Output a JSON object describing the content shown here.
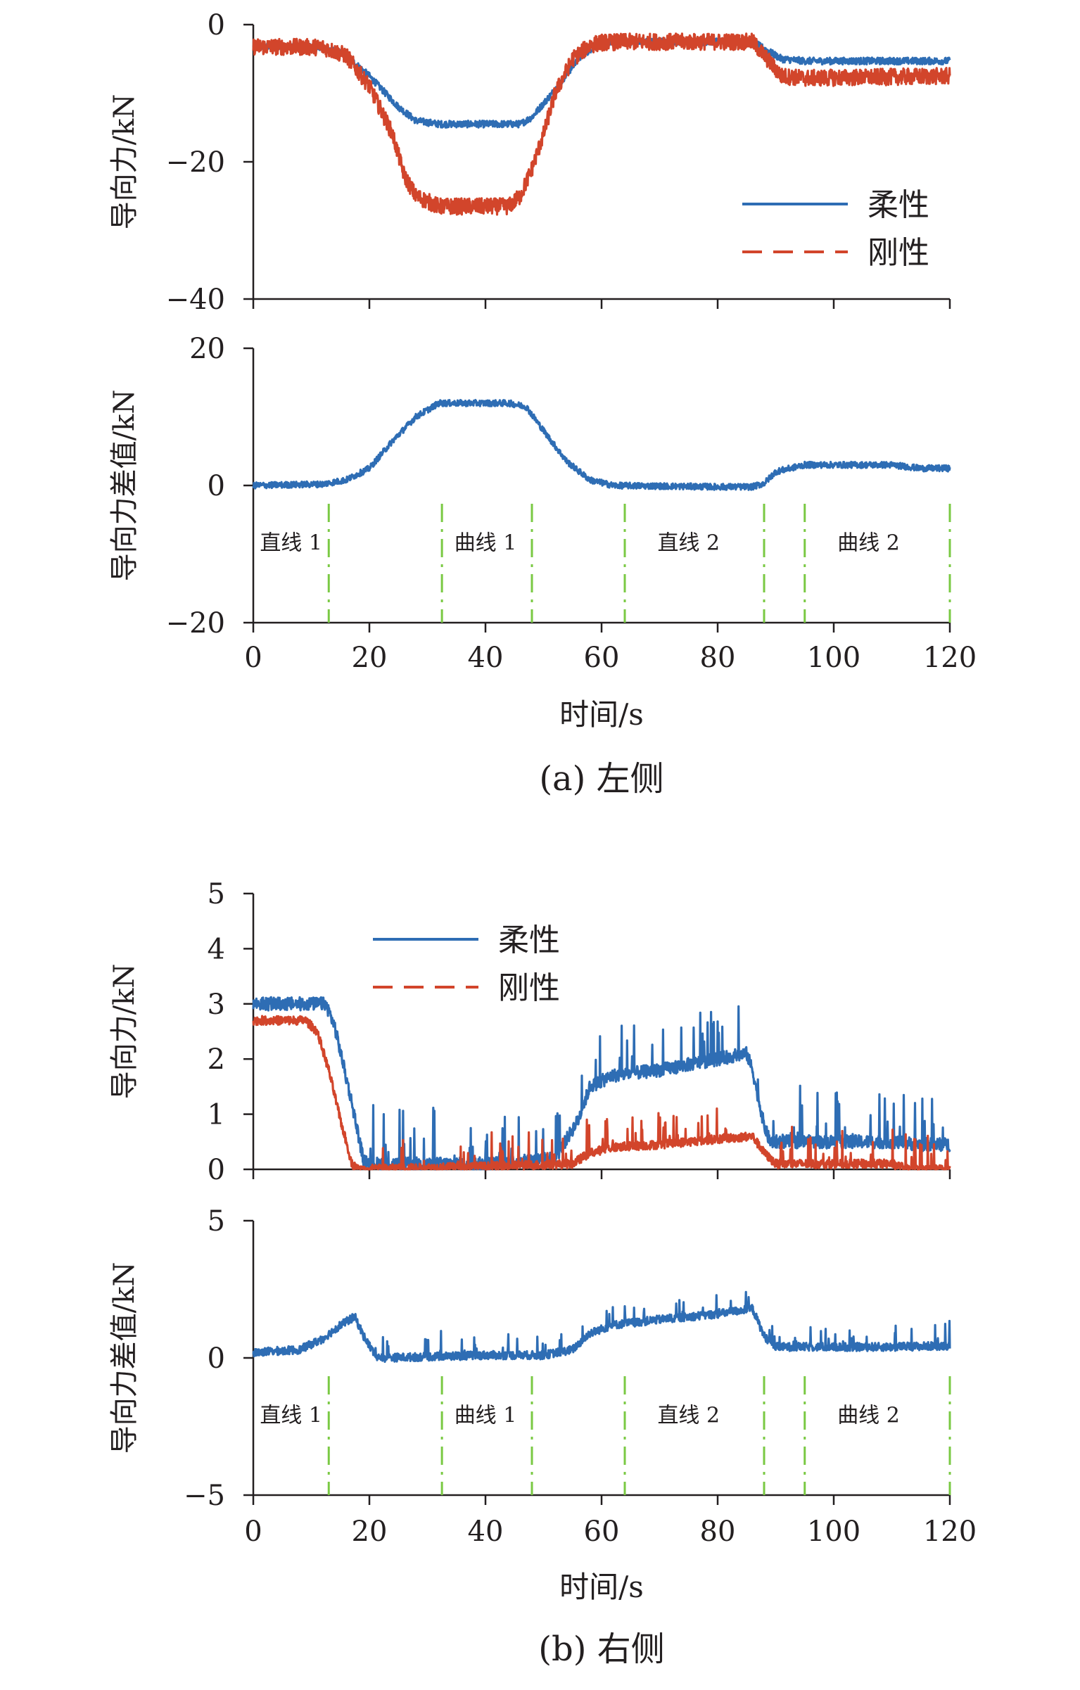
{
  "colors": {
    "flexible": "#2e6db4",
    "rigid": "#d2452b",
    "segment_marker": "#7ac943",
    "axis": "#231f20"
  },
  "chart_data": [
    {
      "type": "line",
      "panel": "a-top",
      "ylabel": "导向力/kN",
      "xlim": [
        0,
        120
      ],
      "ylim": [
        -40,
        0
      ],
      "yticks": [
        "0",
        "−20",
        "−40"
      ],
      "ytick_values": [
        0,
        -20,
        -40
      ],
      "legend": {
        "placement": "center-right",
        "entries": [
          "柔性",
          "刚性"
        ]
      },
      "series": [
        {
          "name": "柔性",
          "style": "solid",
          "noise": 0.5,
          "x": [
            0,
            12,
            16,
            20,
            25,
            28,
            32,
            40,
            46,
            48,
            52,
            56,
            59,
            64,
            80,
            86,
            88,
            91,
            95,
            120
          ],
          "y": [
            -3.2,
            -3.3,
            -4.5,
            -7.5,
            -12,
            -14,
            -14.5,
            -14.5,
            -14.5,
            -13.5,
            -9.5,
            -5,
            -3,
            -2.5,
            -2.5,
            -2.5,
            -3.5,
            -5,
            -5.3,
            -5.3
          ]
        },
        {
          "name": "刚性",
          "style": "dashed",
          "noise": 1.2,
          "x": [
            0,
            12,
            16,
            20,
            24,
            26,
            28,
            32,
            40,
            44,
            46,
            48,
            50,
            52,
            55,
            58,
            60,
            64,
            80,
            86,
            88,
            91,
            95,
            120
          ],
          "y": [
            -3.2,
            -3.3,
            -4.5,
            -9,
            -16,
            -22,
            -25,
            -26.5,
            -26.5,
            -26.5,
            -25,
            -21,
            -16,
            -10,
            -5,
            -3,
            -2.6,
            -2.5,
            -2.5,
            -2.5,
            -4.5,
            -7.5,
            -7.8,
            -7.5
          ]
        }
      ]
    },
    {
      "type": "line",
      "panel": "a-bottom",
      "ylabel": "导向力差值/kN",
      "xlim": [
        0,
        120
      ],
      "ylim": [
        -20,
        20
      ],
      "xticks": [
        "0",
        "20",
        "40",
        "60",
        "80",
        "100",
        "120"
      ],
      "xtick_values": [
        0,
        20,
        40,
        60,
        80,
        100,
        120
      ],
      "yticks": [
        "20",
        "0",
        "−20"
      ],
      "ytick_values": [
        20,
        0,
        -20
      ],
      "xlabel": "时间/s",
      "series": [
        {
          "style": "solid",
          "noise": 0.45,
          "x": [
            0,
            12,
            16,
            20,
            24,
            28,
            32,
            40,
            44,
            47,
            50,
            54,
            58,
            62,
            80,
            86,
            88,
            90,
            95,
            110,
            115,
            120
          ],
          "y": [
            0,
            0.2,
            0.8,
            2.5,
            6.5,
            10,
            12,
            12,
            12,
            11.5,
            8,
            3.5,
            0.8,
            0,
            -0.2,
            -0.2,
            0.3,
            2,
            3,
            3,
            2.5,
            2.5
          ]
        }
      ],
      "segments": {
        "boundaries": [
          13,
          32.5,
          48,
          64,
          88,
          95,
          120
        ],
        "labels": [
          {
            "text": "直线 1",
            "x": 6.5
          },
          {
            "text": "曲线 1",
            "x": 40
          },
          {
            "text": "直线 2",
            "x": 75
          },
          {
            "text": "曲线 2",
            "x": 106
          }
        ]
      },
      "caption": "(a) 左侧"
    },
    {
      "type": "line",
      "panel": "b-top",
      "ylabel": "导向力/kN",
      "xlim": [
        0,
        120
      ],
      "ylim": [
        0,
        5
      ],
      "yticks": [
        "5",
        "4",
        "3",
        "2",
        "1",
        "0"
      ],
      "ytick_values": [
        5,
        4,
        3,
        2,
        1,
        0
      ],
      "legend": {
        "placement": "top-center",
        "entries": [
          "柔性",
          "刚性"
        ]
      },
      "series": [
        {
          "name": "柔性",
          "style": "solid",
          "noise": 0.12,
          "spikes": 0.5,
          "x": [
            0,
            10,
            12.5,
            14,
            17,
            19,
            20,
            40,
            52,
            56,
            58,
            62,
            70,
            80,
            85,
            86,
            88,
            89,
            92,
            110,
            115,
            120
          ],
          "y": [
            3,
            3,
            3,
            2.6,
            1.2,
            0.15,
            0.1,
            0.1,
            0.2,
            0.9,
            1.5,
            1.7,
            1.8,
            2,
            2.1,
            1.8,
            0.8,
            0.5,
            0.5,
            0.5,
            0.45,
            0.45
          ]
        },
        {
          "name": "刚性",
          "style": "dashed",
          "noise": 0.08,
          "spikes": 0.3,
          "x": [
            0,
            9,
            11,
            13,
            15,
            17,
            18,
            40,
            55,
            58,
            62,
            70,
            80,
            86,
            88,
            90,
            110,
            113,
            120
          ],
          "y": [
            2.7,
            2.7,
            2.5,
            1.8,
            0.9,
            0.1,
            0,
            0.05,
            0.1,
            0.3,
            0.4,
            0.45,
            0.55,
            0.6,
            0.3,
            0.1,
            0.1,
            0,
            0
          ]
        }
      ]
    },
    {
      "type": "line",
      "panel": "b-bottom",
      "ylabel": "导向力差值/kN",
      "xlim": [
        0,
        120
      ],
      "ylim": [
        -5,
        5
      ],
      "xticks": [
        "0",
        "20",
        "40",
        "60",
        "80",
        "100",
        "120"
      ],
      "xtick_values": [
        0,
        20,
        40,
        60,
        80,
        100,
        120
      ],
      "yticks": [
        "5",
        "0",
        "−5"
      ],
      "ytick_values": [
        5,
        0,
        -5
      ],
      "xlabel": "时间/s",
      "series": [
        {
          "style": "solid",
          "noise": 0.15,
          "spikes": 0.4,
          "x": [
            0,
            8,
            12,
            15,
            17.5,
            19,
            21,
            22,
            40,
            50,
            55,
            58,
            62,
            70,
            80,
            86,
            88,
            90,
            100,
            110,
            120
          ],
          "y": [
            0.2,
            0.3,
            0.7,
            1.2,
            1.5,
            0.8,
            0.1,
            0,
            0.1,
            0.1,
            0.3,
            0.9,
            1.2,
            1.4,
            1.6,
            1.8,
            0.8,
            0.4,
            0.4,
            0.4,
            0.45
          ]
        }
      ],
      "segments": {
        "boundaries": [
          13,
          32.5,
          48,
          64,
          88,
          95,
          120
        ],
        "labels": [
          {
            "text": "直线 1",
            "x": 6.5
          },
          {
            "text": "曲线 1",
            "x": 40
          },
          {
            "text": "直线 2",
            "x": 75
          },
          {
            "text": "曲线 2",
            "x": 106
          }
        ]
      },
      "caption": "(b) 右侧"
    }
  ]
}
